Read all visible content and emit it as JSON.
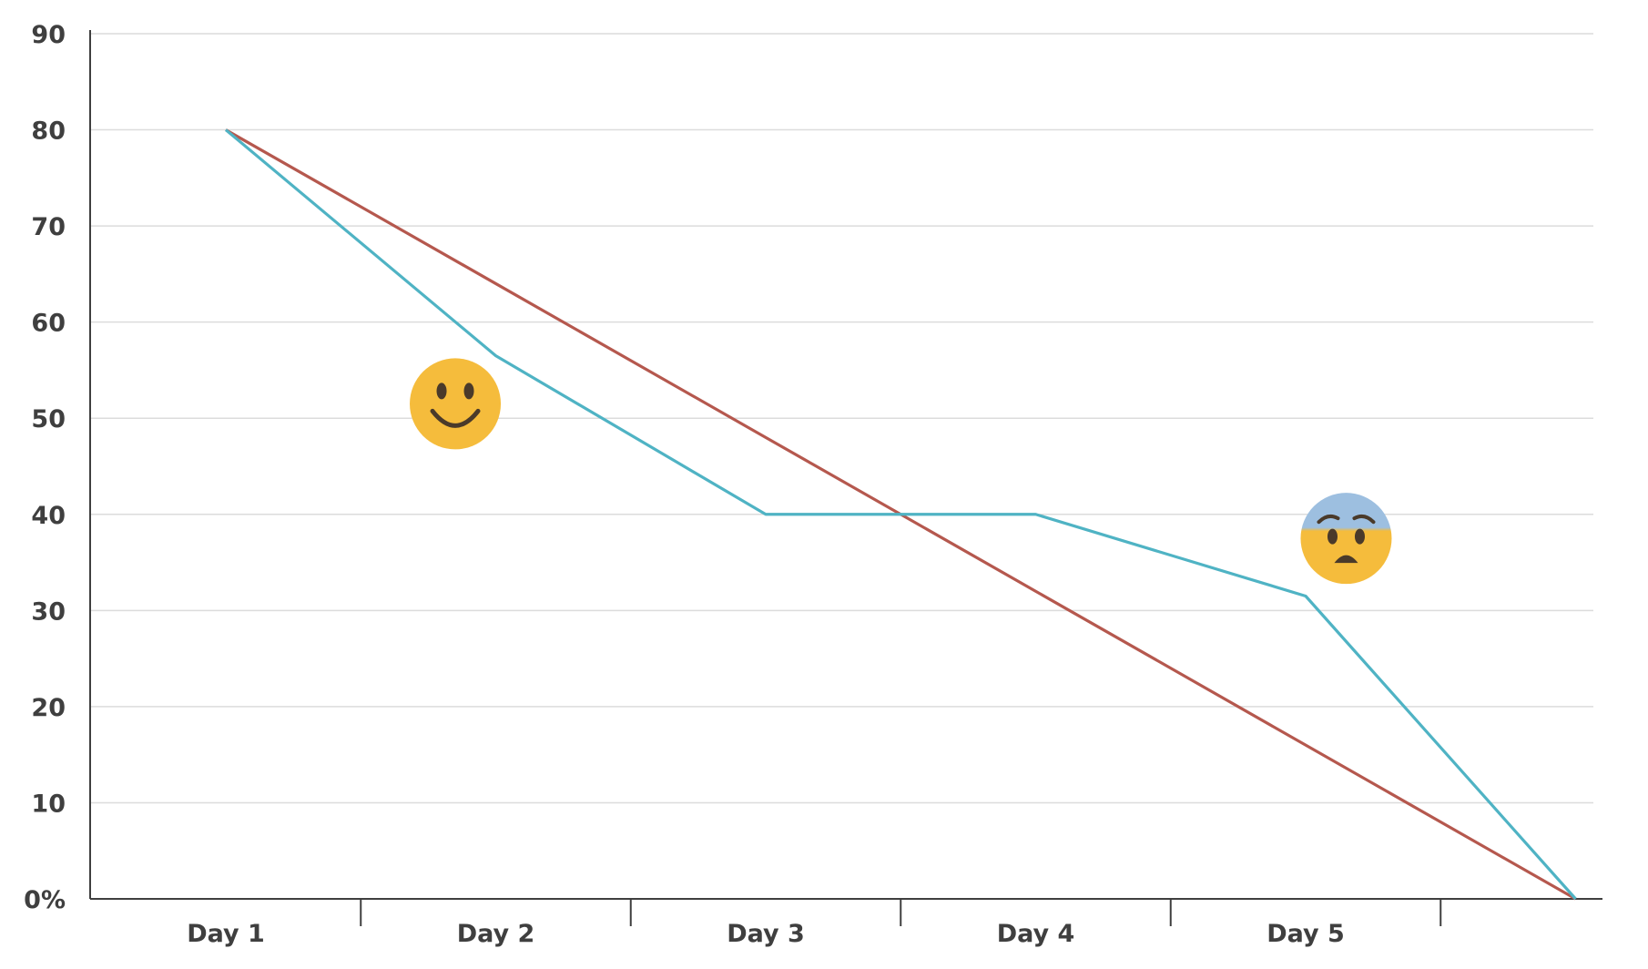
{
  "chart_data": {
    "type": "line",
    "title": "",
    "xlabel": "",
    "ylabel": "",
    "categories": [
      "Day 1",
      "Day 2",
      "Day 3",
      "Day 4",
      "Day 5",
      ""
    ],
    "ylim": [
      0,
      90
    ],
    "yticks": [
      {
        "value": 0,
        "label": "0%"
      },
      {
        "value": 10,
        "label": "10"
      },
      {
        "value": 20,
        "label": "20"
      },
      {
        "value": 30,
        "label": "30"
      },
      {
        "value": 40,
        "label": "40"
      },
      {
        "value": 50,
        "label": "50"
      },
      {
        "value": 60,
        "label": "60"
      },
      {
        "value": 70,
        "label": "70"
      },
      {
        "value": 80,
        "label": "80"
      },
      {
        "value": 90,
        "label": "90"
      }
    ],
    "grid": true,
    "legend": "none",
    "series": [
      {
        "values": [
          80,
          64,
          48,
          32,
          16,
          0
        ],
        "color": "#b5584e"
      },
      {
        "values": [
          80,
          56.5,
          40,
          40,
          31.5,
          0
        ],
        "color": "#4fb3c4"
      }
    ],
    "annotations": [
      {
        "icon": "smiley-face-icon",
        "x_index": 0.85,
        "y": 51.5
      },
      {
        "icon": "anxious-face-icon",
        "x_index": 4.15,
        "y": 37.5
      }
    ]
  }
}
